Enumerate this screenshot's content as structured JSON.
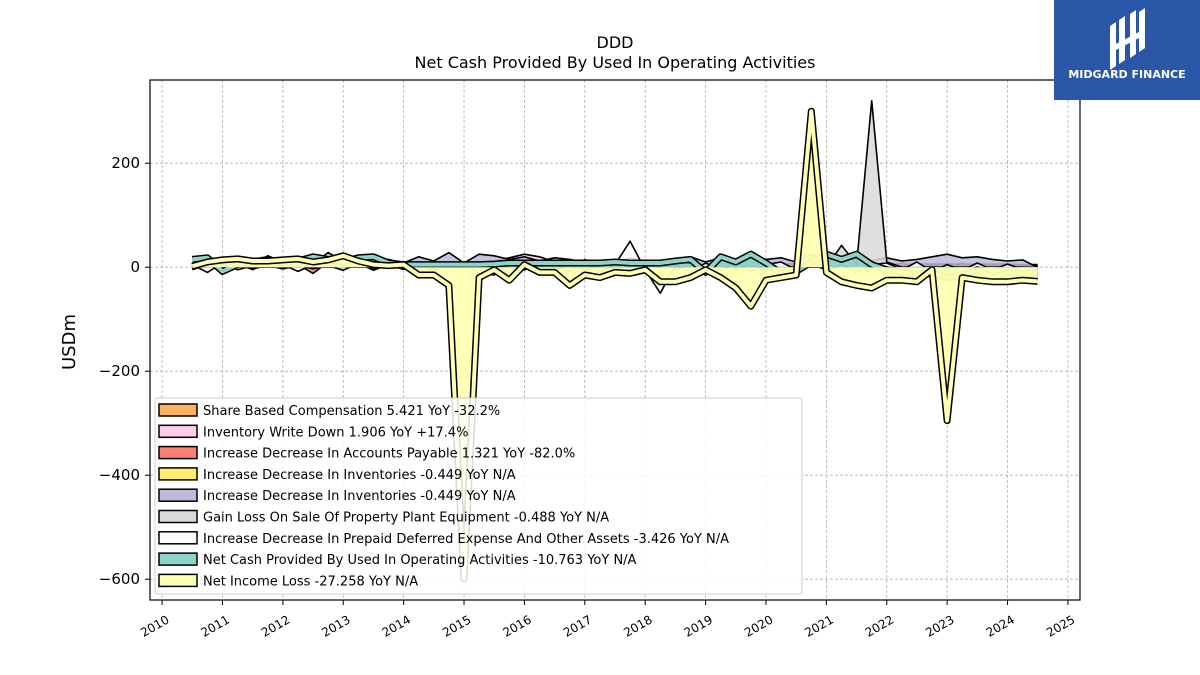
{
  "chart_data": {
    "type": "area",
    "title": "DDD",
    "subtitle": "Net Cash Provided By Used In Operating Activities",
    "ylabel": "USDm",
    "xlabel": "",
    "xlim": [
      2009.8,
      2025.2
    ],
    "ylim": [
      -640,
      360
    ],
    "grid": true,
    "legend_position": "lower-left",
    "x_ticks": [
      "2010",
      "2011",
      "2012",
      "2013",
      "2014",
      "2015",
      "2016",
      "2017",
      "2018",
      "2019",
      "2020",
      "2021",
      "2022",
      "2023",
      "2024",
      "2025"
    ],
    "y_ticks": [
      200,
      0,
      -200,
      -400,
      -600
    ],
    "y_tick_labels": [
      "200",
      "0",
      "−200",
      "−400",
      "−600"
    ],
    "x": [
      2010.5,
      2010.75,
      2011,
      2011.25,
      2011.5,
      2011.75,
      2012,
      2012.25,
      2012.5,
      2012.75,
      2013,
      2013.25,
      2013.5,
      2013.75,
      2014,
      2014.25,
      2014.5,
      2014.75,
      2015,
      2015.25,
      2015.5,
      2015.75,
      2016,
      2016.25,
      2016.5,
      2016.75,
      2017,
      2017.25,
      2017.5,
      2017.75,
      2018,
      2018.25,
      2018.5,
      2018.75,
      2019,
      2019.25,
      2019.5,
      2019.75,
      2020,
      2020.25,
      2020.5,
      2020.75,
      2021,
      2021.25,
      2021.5,
      2021.75,
      2022,
      2022.25,
      2022.5,
      2022.75,
      2023,
      2023.25,
      2023.5,
      2023.75,
      2024,
      2024.25,
      2024.5
    ],
    "series": [
      {
        "name": "Share Based Compensation  5.421 YoY -32.2%",
        "color": "#fdb462",
        "values": [
          2,
          3,
          3,
          3,
          4,
          4,
          4,
          4,
          4,
          5,
          5,
          5,
          5,
          5,
          5,
          5,
          6,
          6,
          6,
          6,
          6,
          6,
          6,
          6,
          6,
          6,
          6,
          6,
          6,
          6,
          6,
          6,
          6,
          6,
          6,
          6,
          6,
          6,
          6,
          6,
          6,
          6,
          6,
          6,
          6,
          6,
          6,
          6,
          6,
          6,
          6,
          6,
          6,
          6,
          6,
          5,
          5
        ]
      },
      {
        "name": "Inventory Write Down  1.906 YoY +17.4%",
        "color": "#fccde5",
        "values": [
          0,
          0,
          0,
          0,
          0,
          0,
          0,
          0,
          0,
          0,
          0,
          0,
          0,
          0,
          0,
          0,
          0,
          0,
          2,
          10,
          12,
          18,
          25,
          20,
          10,
          5,
          3,
          2,
          2,
          2,
          2,
          2,
          2,
          2,
          2,
          2,
          2,
          2,
          2,
          2,
          2,
          2,
          2,
          2,
          2,
          2,
          2,
          2,
          2,
          2,
          2,
          2,
          2,
          2,
          2,
          2,
          2
        ]
      },
      {
        "name": "Increase Decrease In Accounts Payable  1.321 YoY -82.0%",
        "color": "#fb8072",
        "values": [
          -5,
          5,
          -10,
          8,
          -5,
          10,
          -3,
          5,
          -12,
          10,
          -5,
          8,
          -6,
          5,
          -4,
          6,
          -8,
          10,
          5,
          -10,
          8,
          -15,
          5,
          10,
          -5,
          8,
          -6,
          5,
          -3,
          6,
          -5,
          8,
          -6,
          5,
          -4,
          8,
          -5,
          6,
          -8,
          10,
          -6,
          5,
          -4,
          8,
          -5,
          6,
          -5,
          8,
          -4,
          6,
          -5,
          8,
          -5,
          6,
          -4,
          5,
          1
        ]
      },
      {
        "name": "Increase Decrease In Inventories  -0.449 YoY N/A",
        "color": "#ffed6f",
        "values": [
          -3,
          3,
          -3,
          3,
          -3,
          3,
          -3,
          3,
          -3,
          3,
          -3,
          3,
          -3,
          3,
          -3,
          3,
          -3,
          3,
          -3,
          3,
          -3,
          3,
          -3,
          3,
          -3,
          3,
          -3,
          3,
          -3,
          3,
          -3,
          3,
          -3,
          3,
          -3,
          3,
          -3,
          3,
          -3,
          3,
          -3,
          3,
          -3,
          3,
          -3,
          3,
          -3,
          3,
          -3,
          3,
          -3,
          3,
          -3,
          3,
          -3,
          2,
          -0.4
        ]
      },
      {
        "name": "Increase Decrease In Inventories  -0.449 YoY N/A",
        "color": "#bebada",
        "values": [
          3,
          18,
          8,
          12,
          5,
          22,
          10,
          15,
          8,
          28,
          12,
          18,
          10,
          15,
          8,
          20,
          12,
          28,
          8,
          25,
          22,
          15,
          20,
          12,
          18,
          15,
          10,
          12,
          8,
          18,
          10,
          12,
          15,
          20,
          10,
          18,
          12,
          20,
          15,
          18,
          10,
          25,
          12,
          15,
          20,
          12,
          18,
          12,
          15,
          20,
          25,
          18,
          20,
          15,
          12,
          14,
          -0.4
        ]
      },
      {
        "name": "Gain Loss On Sale Of Property Plant Equipment  -0.488 YoY N/A",
        "color": "#d9d9d9",
        "values": [
          0,
          0,
          0,
          0,
          0,
          0,
          0,
          0,
          0,
          0,
          0,
          0,
          0,
          0,
          0,
          0,
          0,
          0,
          0,
          0,
          0,
          0,
          0,
          0,
          0,
          0,
          0,
          0,
          0,
          0,
          0,
          0,
          0,
          0,
          0,
          0,
          0,
          0,
          0,
          0,
          0,
          0,
          0,
          42,
          5,
          320,
          10,
          0,
          0,
          0,
          0,
          0,
          0,
          0,
          0,
          0,
          -0.5
        ]
      },
      {
        "name": "Increase Decrease In Prepaid Deferred Expense And Other Assets  -3.426 YoY N/A",
        "color": "#ffffff",
        "values": [
          5,
          -10,
          8,
          -5,
          3,
          10,
          5,
          -8,
          5,
          3,
          -6,
          8,
          -3,
          5,
          -4,
          6,
          -3,
          5,
          8,
          -12,
          -15,
          10,
          -5,
          3,
          5,
          -8,
          15,
          -10,
          5,
          50,
          -5,
          -50,
          5,
          -10,
          8,
          -6,
          10,
          -8,
          5,
          10,
          -5,
          8,
          -6,
          5,
          -10,
          5,
          8,
          -5,
          10,
          -8,
          5,
          -6,
          8,
          -5,
          6,
          -4,
          -3.4
        ]
      },
      {
        "name": "Net Cash Provided By Used In Operating Activities  -10.763 YoY N/A",
        "color": "#8dd3c7",
        "values": [
          15,
          18,
          -8,
          5,
          10,
          15,
          8,
          12,
          20,
          15,
          10,
          18,
          20,
          8,
          5,
          5,
          5,
          5,
          5,
          5,
          6,
          8,
          8,
          8,
          8,
          8,
          8,
          8,
          10,
          8,
          8,
          8,
          12,
          15,
          -10,
          20,
          10,
          25,
          8,
          -12,
          -8,
          10,
          25,
          15,
          25,
          5,
          -5,
          -10,
          -15,
          -12,
          -20,
          -15,
          -5,
          -20,
          -10,
          -12,
          -10.8
        ]
      },
      {
        "name": "Net Income Loss  -27.258 YoY N/A",
        "color": "#ffffb3",
        "values": [
          2,
          10,
          14,
          16,
          12,
          12,
          14,
          16,
          10,
          14,
          22,
          12,
          5,
          3,
          5,
          -15,
          -15,
          -35,
          -600,
          -20,
          -5,
          -25,
          5,
          -10,
          -10,
          -35,
          -15,
          -20,
          -10,
          -12,
          -5,
          -28,
          -28,
          -20,
          -5,
          -20,
          -40,
          -75,
          -25,
          -20,
          -15,
          300,
          -10,
          -28,
          -35,
          -40,
          -25,
          -25,
          -28,
          -5,
          -295,
          -20,
          -25,
          -28,
          -28,
          -25,
          -27.3
        ]
      }
    ]
  },
  "logo": {
    "text": "MIDGARD FINANCE"
  }
}
